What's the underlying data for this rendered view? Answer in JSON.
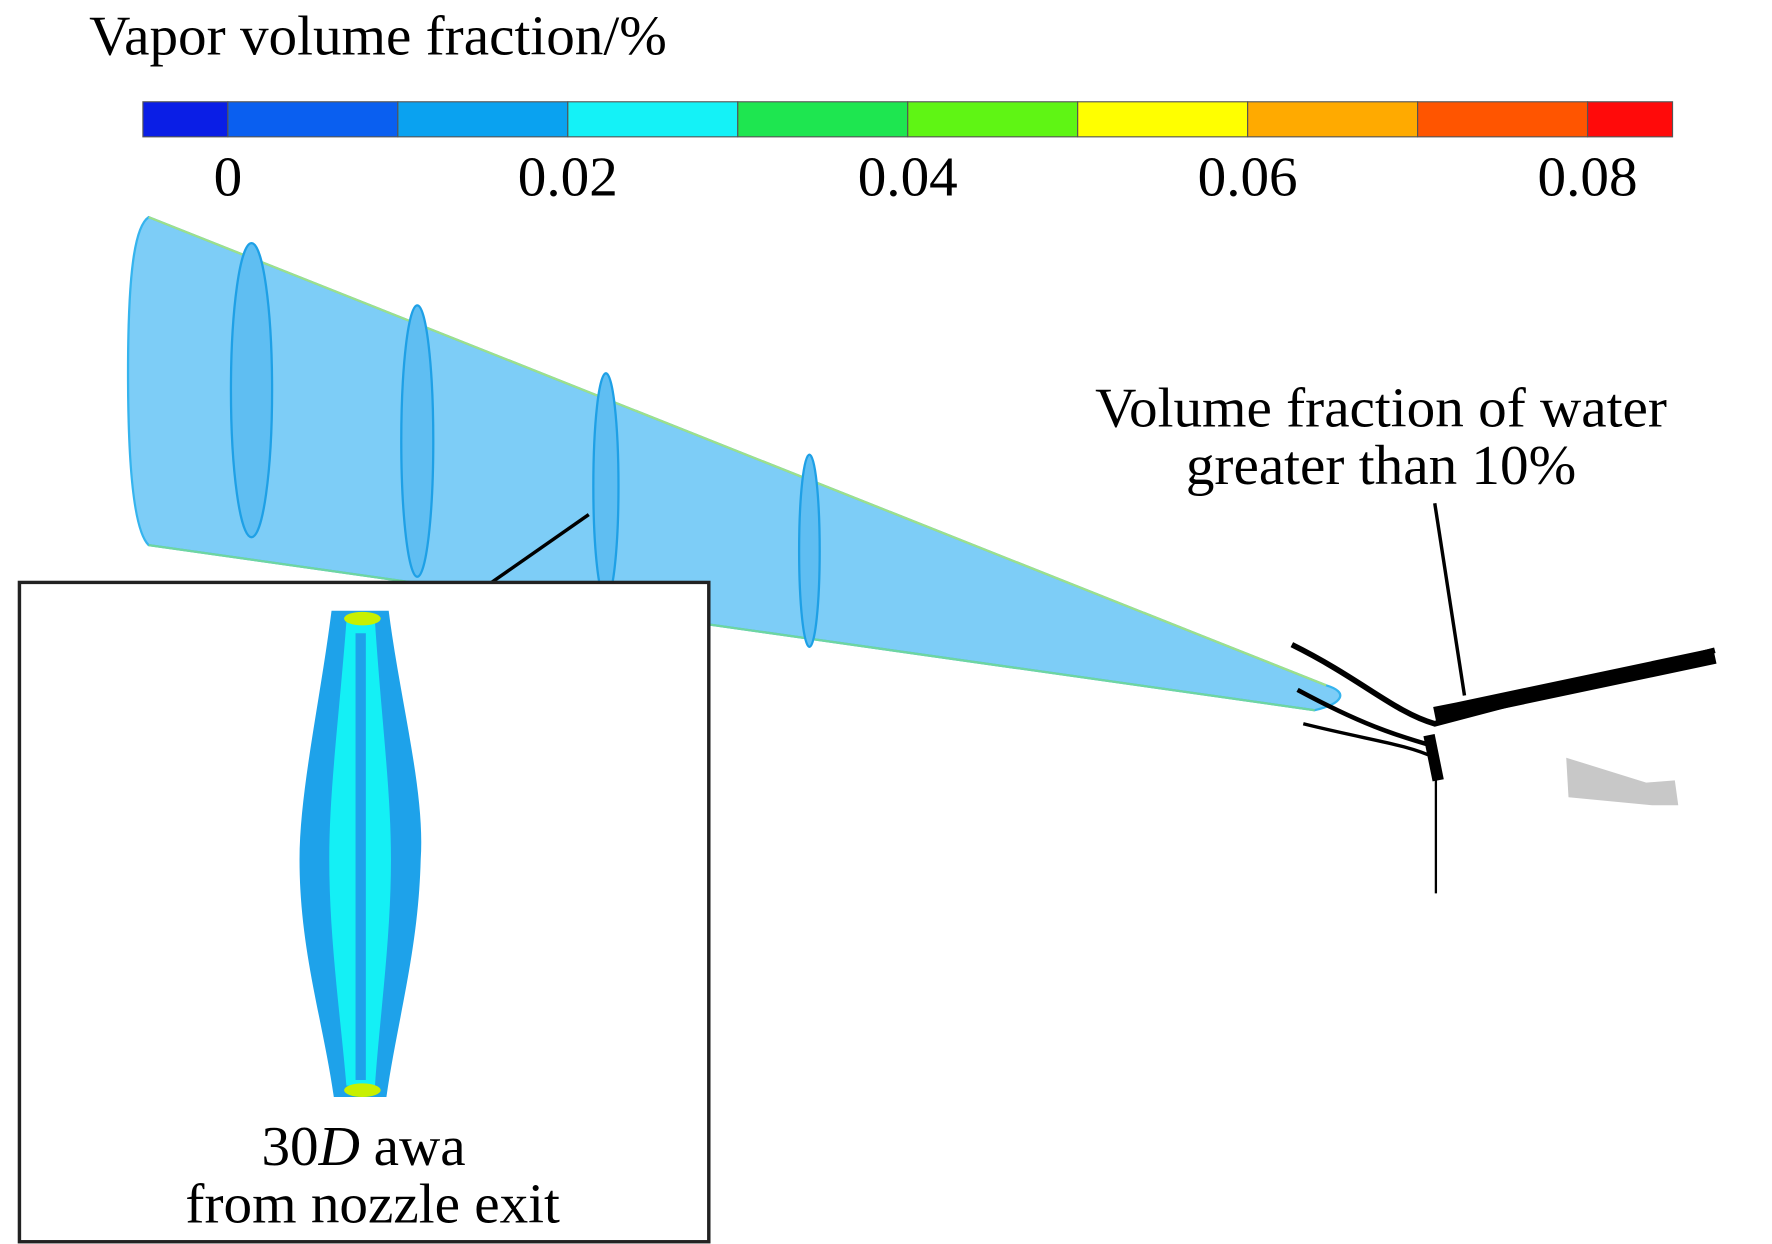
{
  "colorbar": {
    "title": "Vapor volume fraction/%",
    "range": [
      -0.005,
      0.085
    ],
    "levels": [
      -0.005,
      0,
      0.01,
      0.02,
      0.03,
      0.04,
      0.05,
      0.06,
      0.07,
      0.08,
      0.085
    ],
    "colors": [
      "#0a1ee6",
      "#0a5ff0",
      "#0aa2f0",
      "#14f2f7",
      "#1ee650",
      "#5ff514",
      "#ffff00",
      "#ffaa00",
      "#ff5500",
      "#ff0a0a"
    ],
    "ticks": [
      0,
      0.02,
      0.04,
      0.06,
      0.08
    ]
  },
  "annotation": {
    "line1": "Volume fraction of water",
    "line2": "greater than 10%"
  },
  "inset": {
    "caption_number": "30",
    "caption_symbol": "D",
    "caption_rest": "awa",
    "caption_line2": "from nozzle exit"
  }
}
